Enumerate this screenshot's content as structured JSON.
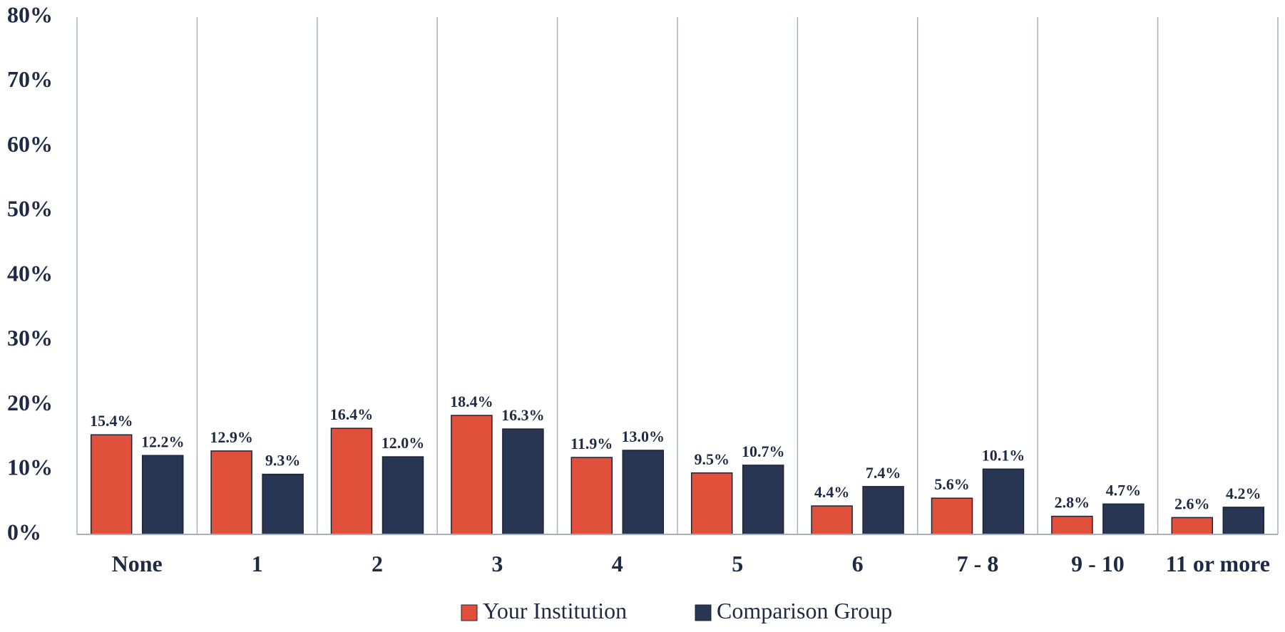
{
  "chart_data": {
    "type": "bar",
    "categories": [
      "None",
      "1",
      "2",
      "3",
      "4",
      "5",
      "6",
      "7 - 8",
      "9 - 10",
      "11 or more"
    ],
    "series": [
      {
        "name": "Your Institution",
        "color": "#e0503a",
        "values": [
          15.4,
          12.9,
          16.4,
          18.4,
          11.9,
          9.5,
          4.4,
          5.6,
          2.8,
          2.6
        ],
        "labels": [
          "15.4%",
          "12.9%",
          "16.4%",
          "18.4%",
          "11.9%",
          "9.5%",
          "4.4%",
          "5.6%",
          "2.8%",
          "2.6%"
        ]
      },
      {
        "name": "Comparison Group",
        "color": "#283653",
        "values": [
          12.2,
          9.3,
          12.0,
          16.3,
          13.0,
          10.7,
          7.4,
          10.1,
          4.7,
          4.2
        ],
        "labels": [
          "12.2%",
          "9.3%",
          "12.0%",
          "16.3%",
          "13.0%",
          "10.7%",
          "7.4%",
          "10.1%",
          "4.7%",
          "4.2%"
        ]
      }
    ],
    "ylim": [
      0,
      80
    ],
    "yticks": [
      0,
      10,
      20,
      30,
      40,
      50,
      60,
      70,
      80
    ],
    "ytick_labels": [
      "0%",
      "10%",
      "20%",
      "30%",
      "40%",
      "50%",
      "60%",
      "70%",
      "80%"
    ],
    "grid": "vertical separators between categories",
    "legend_position": "bottom-center",
    "title": "",
    "xlabel": "",
    "ylabel": ""
  }
}
